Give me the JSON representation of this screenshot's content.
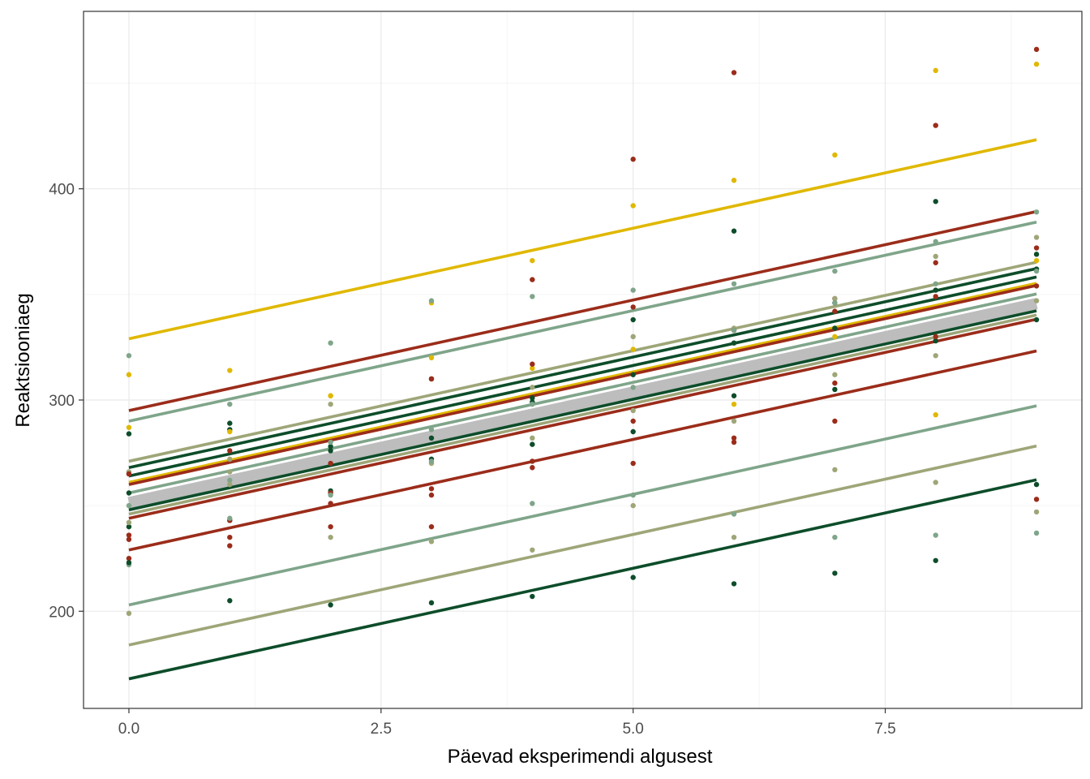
{
  "chart_data": {
    "type": "scatter",
    "title": "",
    "xlabel": "Päevad eksperimendi algusest",
    "ylabel": "Reaktsiooniaeg",
    "xlim": [
      -0.45,
      9.45
    ],
    "ylim": [
      154,
      484
    ],
    "x_ticks": [
      0,
      2.5,
      5,
      7.5
    ],
    "x_tick_labels": [
      "0.0",
      "2.5",
      "5.0",
      "7.5"
    ],
    "y_ticks": [
      200,
      300,
      400
    ],
    "y_tick_labels": [
      "200",
      "300",
      "400"
    ],
    "grid": true,
    "legend": "none",
    "slope": 10.47,
    "fixed_line": {
      "intercept": 251.4,
      "color": "#bdbdbd"
    },
    "days": [
      0,
      1,
      2,
      3,
      4,
      5,
      6,
      7,
      8,
      9
    ],
    "series": [
      {
        "intercept": 329,
        "color": "#e0b800",
        "points": [
          [
            0,
            312
          ],
          [
            1,
            314
          ],
          [
            2,
            302
          ],
          [
            3,
            346
          ],
          [
            4,
            366
          ],
          [
            5,
            392
          ],
          [
            6,
            404
          ],
          [
            7,
            416
          ],
          [
            8,
            456
          ],
          [
            9,
            459
          ]
        ]
      },
      {
        "intercept": 295,
        "color": "#9b2c1a",
        "points": [
          [
            0,
            236
          ],
          [
            1,
            231
          ],
          [
            2,
            251
          ],
          [
            3,
            255
          ],
          [
            4,
            357
          ],
          [
            5,
            414
          ],
          [
            6,
            455
          ],
          [
            7,
            348
          ],
          [
            8,
            430
          ],
          [
            9,
            466
          ]
        ]
      },
      {
        "intercept": 290,
        "color": "#7fa58a",
        "points": [
          [
            0,
            321
          ],
          [
            1,
            298
          ],
          [
            2,
            327
          ],
          [
            3,
            347
          ],
          [
            4,
            349
          ],
          [
            5,
            352
          ],
          [
            6,
            355
          ],
          [
            7,
            361
          ],
          [
            8,
            375
          ],
          [
            9,
            389
          ]
        ]
      },
      {
        "intercept": 271,
        "color": "#9ea678",
        "points": [
          [
            0,
            266
          ],
          [
            1,
            272
          ],
          [
            2,
            298
          ],
          [
            3,
            310
          ],
          [
            4,
            306
          ],
          [
            5,
            330
          ],
          [
            6,
            334
          ],
          [
            7,
            348
          ],
          [
            8,
            368
          ],
          [
            9,
            377
          ]
        ]
      },
      {
        "intercept": 268,
        "color": "#0d4d2a",
        "points": [
          [
            0,
            284
          ],
          [
            1,
            289
          ],
          [
            2,
            276
          ],
          [
            3,
            282
          ],
          [
            4,
            299
          ],
          [
            5,
            338
          ],
          [
            6,
            380
          ],
          [
            7,
            346
          ],
          [
            8,
            394
          ],
          [
            9,
            369
          ]
        ]
      },
      {
        "intercept": 264,
        "color": "#0d4d2a",
        "points": [
          [
            0,
            256
          ],
          [
            1,
            286
          ],
          [
            2,
            278
          ],
          [
            3,
            310
          ],
          [
            4,
            301
          ],
          [
            5,
            312
          ],
          [
            6,
            327
          ],
          [
            7,
            334
          ],
          [
            8,
            352
          ],
          [
            9,
            362
          ]
        ]
      },
      {
        "intercept": 261,
        "color": "#e0b800",
        "points": [
          [
            0,
            287
          ],
          [
            1,
            285
          ],
          [
            2,
            302
          ],
          [
            3,
            320
          ],
          [
            4,
            315
          ],
          [
            5,
            324
          ],
          [
            6,
            298
          ],
          [
            7,
            330
          ],
          [
            8,
            293
          ],
          [
            9,
            366
          ]
        ]
      },
      {
        "intercept": 260,
        "color": "#9b2c1a",
        "points": [
          [
            0,
            265
          ],
          [
            1,
            276
          ],
          [
            2,
            270
          ],
          [
            3,
            310
          ],
          [
            4,
            317
          ],
          [
            5,
            344
          ],
          [
            6,
            333
          ],
          [
            7,
            342
          ],
          [
            8,
            349
          ],
          [
            9,
            372
          ]
        ]
      },
      {
        "intercept": 256,
        "color": "#7fa58a",
        "points": [
          [
            0,
            250
          ],
          [
            1,
            262
          ],
          [
            2,
            280
          ],
          [
            3,
            286
          ],
          [
            4,
            298
          ],
          [
            5,
            306
          ],
          [
            6,
            333
          ],
          [
            7,
            346
          ],
          [
            8,
            355
          ],
          [
            9,
            361
          ]
        ]
      },
      {
        "intercept": 248,
        "color": "#0d4d2a",
        "points": [
          [
            0,
            240
          ],
          [
            1,
            243
          ],
          [
            2,
            257
          ],
          [
            3,
            272
          ],
          [
            4,
            279
          ],
          [
            5,
            285
          ],
          [
            6,
            302
          ],
          [
            7,
            305
          ],
          [
            8,
            328
          ],
          [
            9,
            338
          ]
        ]
      },
      {
        "intercept": 246,
        "color": "#9ea678",
        "points": [
          [
            0,
            242
          ],
          [
            1,
            260
          ],
          [
            2,
            256
          ],
          [
            3,
            270
          ],
          [
            4,
            282
          ],
          [
            5,
            295
          ],
          [
            6,
            290
          ],
          [
            7,
            312
          ],
          [
            8,
            321
          ],
          [
            9,
            347
          ]
        ]
      },
      {
        "intercept": 244,
        "color": "#9b2c1a",
        "points": [
          [
            0,
            234
          ],
          [
            1,
            243
          ],
          [
            2,
            256
          ],
          [
            3,
            258
          ],
          [
            4,
            268
          ],
          [
            5,
            290
          ],
          [
            6,
            282
          ],
          [
            7,
            308
          ],
          [
            8,
            330
          ],
          [
            9,
            354
          ]
        ]
      },
      {
        "intercept": 229,
        "color": "#9b2c1a",
        "points": [
          [
            0,
            225
          ],
          [
            1,
            235
          ],
          [
            2,
            240
          ],
          [
            3,
            240
          ],
          [
            4,
            271
          ],
          [
            5,
            270
          ],
          [
            6,
            280
          ],
          [
            7,
            290
          ],
          [
            8,
            365
          ],
          [
            9,
            253
          ]
        ]
      },
      {
        "intercept": 203,
        "color": "#7fa58a",
        "points": [
          [
            0,
            222
          ],
          [
            1,
            244
          ],
          [
            2,
            255
          ],
          [
            3,
            271
          ],
          [
            4,
            251
          ],
          [
            5,
            255
          ],
          [
            6,
            246
          ],
          [
            7,
            235
          ],
          [
            8,
            236
          ],
          [
            9,
            237
          ]
        ]
      },
      {
        "intercept": 184,
        "color": "#9ea678",
        "points": [
          [
            0,
            199
          ],
          [
            1,
            266
          ],
          [
            2,
            235
          ],
          [
            3,
            233
          ],
          [
            4,
            229
          ],
          [
            5,
            250
          ],
          [
            6,
            235
          ],
          [
            7,
            267
          ],
          [
            8,
            261
          ],
          [
            9,
            247
          ]
        ]
      },
      {
        "intercept": 168,
        "color": "#0d4d2a",
        "points": [
          [
            0,
            223
          ],
          [
            1,
            205
          ],
          [
            2,
            203
          ],
          [
            3,
            204
          ],
          [
            4,
            207
          ],
          [
            5,
            216
          ],
          [
            6,
            213
          ],
          [
            7,
            218
          ],
          [
            8,
            224
          ],
          [
            9,
            260
          ]
        ]
      }
    ]
  }
}
